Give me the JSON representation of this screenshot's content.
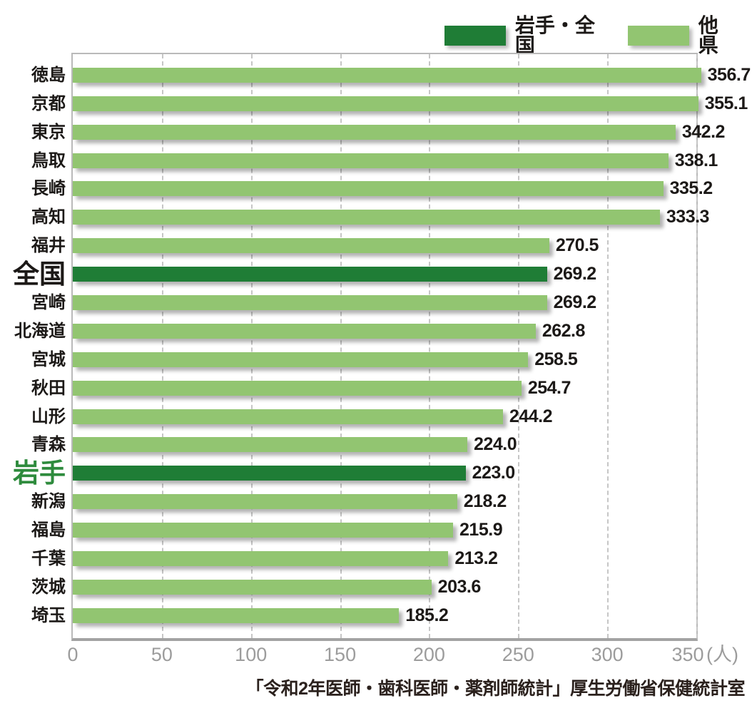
{
  "legend": {
    "items": [
      {
        "label": "岩手・全国",
        "role": "highlight"
      },
      {
        "label": "他県",
        "role": "other"
      }
    ]
  },
  "colors": {
    "highlight_bar": "#1f7d36",
    "other_bar": "#92c571",
    "iwate_label_green": "#2e8b3d",
    "text": "#1c1917",
    "axis_text": "#9c9c9c",
    "gridline": "#c6c6c6",
    "frame": "#b9b9b9",
    "axis_line": "#a2a2a2"
  },
  "chart_data": {
    "type": "bar",
    "orientation": "horizontal",
    "title": "",
    "categories": [
      "徳島",
      "京都",
      "東京",
      "鳥取",
      "長崎",
      "高知",
      "福井",
      "全国",
      "宮崎",
      "北海道",
      "宮城",
      "秋田",
      "山形",
      "青森",
      "岩手",
      "新潟",
      "福島",
      "千葉",
      "茨城",
      "埼玉"
    ],
    "values": [
      356.7,
      355.1,
      342.2,
      338.1,
      335.2,
      333.3,
      270.5,
      269.2,
      269.2,
      262.8,
      258.5,
      254.7,
      244.2,
      224.0,
      223.0,
      218.2,
      215.9,
      213.2,
      203.6,
      185.2
    ],
    "value_labels": [
      "356.7",
      "355.1",
      "342.2",
      "338.1",
      "335.2",
      "333.3",
      "270.5",
      "269.2",
      "269.2",
      "262.8",
      "258.5",
      "254.7",
      "244.2",
      "224.0",
      "223.0",
      "218.2",
      "215.9",
      "213.2",
      "203.6",
      "185.2"
    ],
    "emphasis": [
      "none",
      "none",
      "none",
      "none",
      "none",
      "none",
      "none",
      "national",
      "none",
      "none",
      "none",
      "none",
      "none",
      "none",
      "iwate",
      "none",
      "none",
      "none",
      "none",
      "none"
    ],
    "series": [
      {
        "name": "岩手・全国",
        "color_role": "highlight"
      },
      {
        "name": "他県",
        "color_role": "other"
      }
    ],
    "xticks": [
      0,
      50,
      100,
      150,
      200,
      250,
      300,
      350
    ],
    "xlabel": "(人)",
    "xlim": [
      0,
      350
    ],
    "bar_scale_max": 354,
    "grid": "dashed-vertical",
    "legend_position": "top-right",
    "source": "「令和2年医師・歯科医師・薬剤師統計」厚生労働省保健統計室"
  }
}
